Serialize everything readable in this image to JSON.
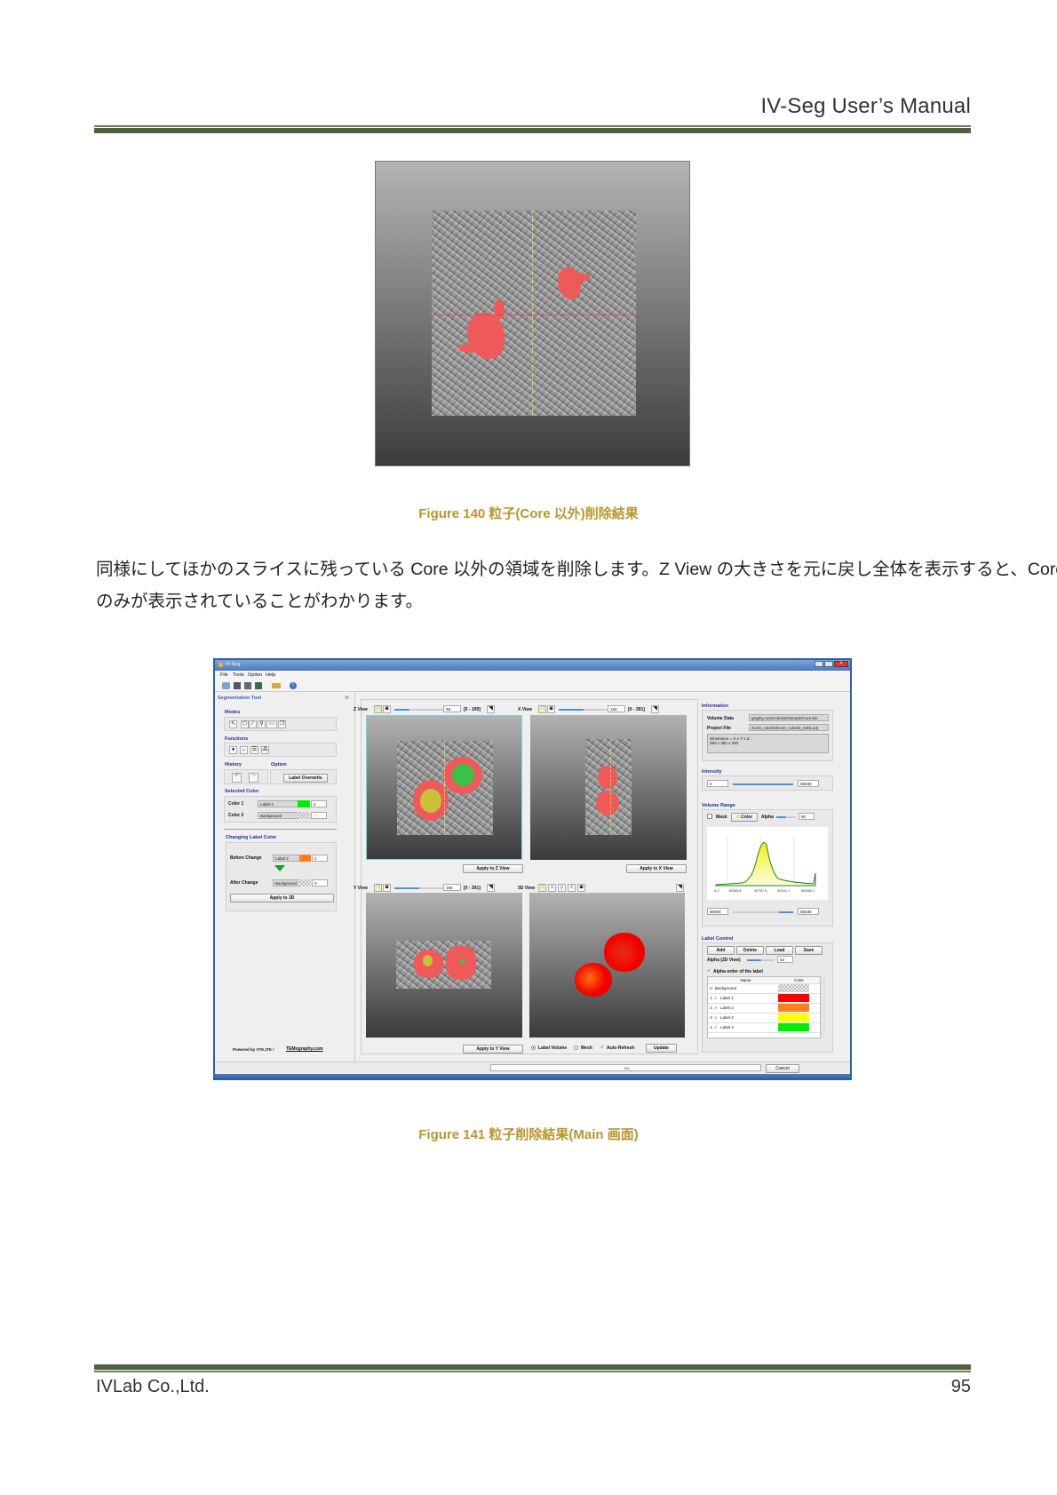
{
  "header": {
    "title": "IV-Seg User’s Manual"
  },
  "figure140": {
    "caption": "Figure 140  粒子(Core 以外)削除結果"
  },
  "body": {
    "lines": [
      "同様にしてほかのスライスに残っている Core 以外の領域を削除します。Z View の大きさを元に戻し全体を表示すると、Core",
      "のみが表示されていることがわかります。"
    ]
  },
  "figure141": {
    "caption": "Figure 141  粒子削除結果(Main 画面)",
    "window": {
      "title": "IV-Seg",
      "menu": [
        "File",
        "Tools",
        "Option",
        "Help"
      ],
      "left_panel": {
        "title": "Segmentation Tool",
        "modes": "Modes",
        "functions": "Functions",
        "history": "History",
        "option": "Option",
        "label_overwrite": "Label Overwrite",
        "selected_color": "Selected Color",
        "color1_label": "Color 1",
        "color1_name": "Label 4",
        "color1_value": "4",
        "color1_hex": "#00ee00",
        "color2_label": "Color 2",
        "color2_name": "Background",
        "color2_value": "0",
        "changing_label_color": "Changing Label Color",
        "before_change": "Before Change",
        "before_name": "Label 2",
        "before_value": "2",
        "before_hex": "#ff7f1e",
        "after_change": "After Change",
        "after_name": "Background",
        "after_value": "0",
        "apply_3d": "Apply to 3D",
        "powered_by": "Powered by VTK,ITK / ",
        "powered_brand": "TEMography.com"
      },
      "views": {
        "z": {
          "label": "Z View",
          "value": "59",
          "range": "[0 - 199]",
          "apply": "Apply to Z View",
          "slider": 0.3
        },
        "x": {
          "label": "X View",
          "value": "193",
          "range": "[0 - 391]",
          "apply": "Apply to X View",
          "slider": 0.5
        },
        "y": {
          "label": "Y View",
          "value": "195",
          "range": "[0 - 391]",
          "apply": "Apply to Y View",
          "slider": 0.5
        },
        "three_d": {
          "label": "3D View",
          "label_volume": "Label Volume",
          "mesh": "Mesh",
          "auto_refresh": "Auto Refresh",
          "update": "Update"
        }
      },
      "right_panel": {
        "information": "Information",
        "volume_data_label": "Volume Data",
        "volume_data": "graphy.com/Colorist/Sample/Core.bin",
        "project_file_label": "Project File",
        "project_file": "/Core_colorist/Core_colorist_0301.iprj",
        "dimension_line1": "Dimension = X x Y x Z :",
        "dimension_line2": "392 x 392 x 200",
        "intensity": "Intensity",
        "intensity_min": "0",
        "intensity_max": "65535",
        "volume_range": "Volume Range",
        "mask": "Mask",
        "color": "Color",
        "alpha": "Alpha",
        "alpha_value": "50",
        "hist_ticks": [
          "0.0",
          "16383.8",
          "32767.5",
          "49151.2",
          "65535.0"
        ],
        "range_min": "50000",
        "range_max": "65535",
        "label_control": "Label Control",
        "add": "Add",
        "delete": "Delete",
        "load": "Load",
        "save": "Save",
        "alpha_2d": "Alpha (2D View)",
        "alpha_2d_value": "53",
        "alpha_order": "Alpha order of the label",
        "table_headers": [
          "Name",
          "Color"
        ],
        "labels": [
          {
            "index": "0",
            "name": "Background",
            "color": "checker"
          },
          {
            "index": "1",
            "name": "Label 1",
            "color": "#ff0000"
          },
          {
            "index": "2",
            "name": "Label 2",
            "color": "#ff7f1e"
          },
          {
            "index": "3",
            "name": "Label 3",
            "color": "#ffff00"
          },
          {
            "index": "4",
            "name": "Label 4",
            "color": "#00ee00"
          }
        ],
        "cancel": "Cancel"
      },
      "status": "0%"
    }
  },
  "footer": {
    "company": "IVLab Co.,Ltd.",
    "page": "95"
  }
}
